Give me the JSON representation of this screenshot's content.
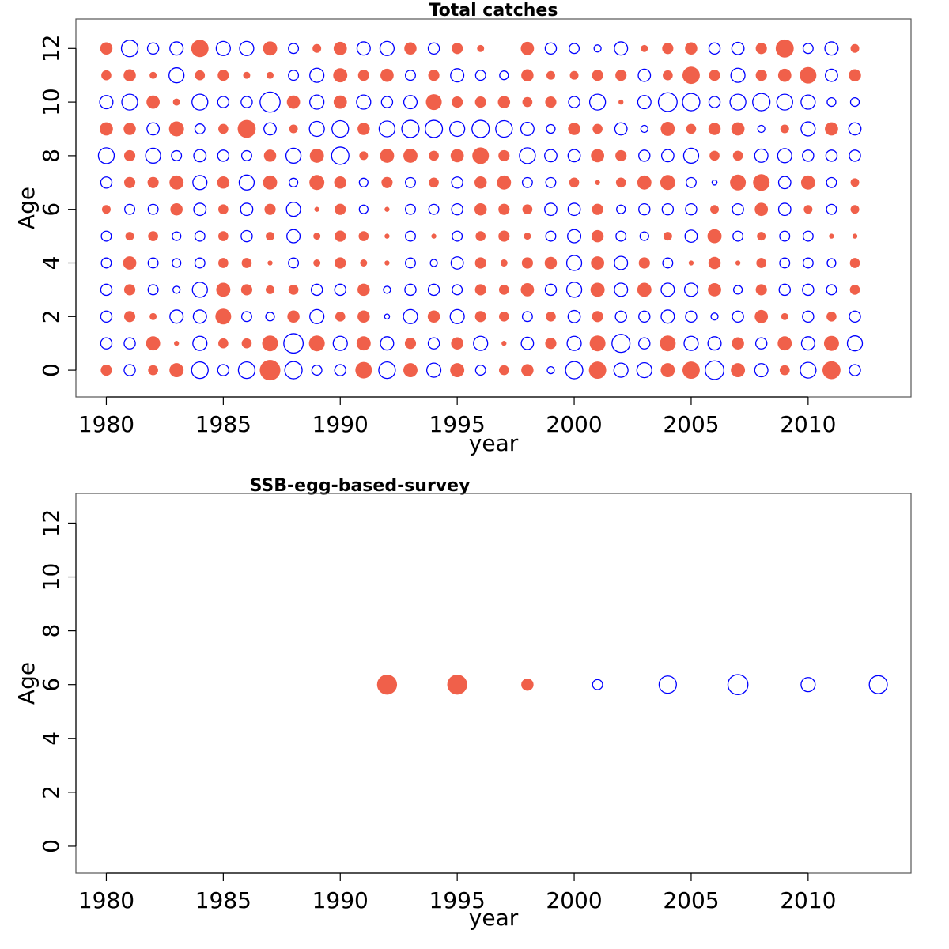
{
  "colors": {
    "positive": "#f0604a",
    "negative": "#0000ff"
  },
  "chart_data": [
    {
      "type": "scatter",
      "title": "Total catches",
      "xlabel": "year",
      "ylabel": "Age",
      "xlim": [
        1978.7,
        2014.4
      ],
      "ylim": [
        -1,
        13.1
      ],
      "xticks": [
        "1980",
        "1985",
        "1990",
        "1995",
        "2000",
        "2005",
        "2010"
      ],
      "yticks": [
        "0",
        "2",
        "4",
        "6",
        "8",
        "10",
        "12"
      ],
      "grid": false,
      "years": [
        1980,
        1981,
        1982,
        1983,
        1984,
        1985,
        1986,
        1987,
        1988,
        1989,
        1990,
        1991,
        1992,
        1993,
        1994,
        1995,
        1996,
        1997,
        1998,
        1999,
        2000,
        2001,
        2002,
        2003,
        2004,
        2005,
        2006,
        2007,
        2008,
        2009,
        2010,
        2011,
        2012
      ],
      "ages": [
        0,
        1,
        2,
        3,
        4,
        5,
        6,
        7,
        8,
        9,
        10,
        11,
        12
      ],
      "residuals": [
        [
          0.5,
          -0.5,
          0.4,
          0.8,
          -1.1,
          -0.5,
          -1.1,
          1.7,
          -1.2,
          -0.4,
          -0.5,
          1.1,
          -1.1,
          0.8,
          -0.8,
          0.8,
          -0.4,
          0.4,
          0.6,
          -0.2,
          -1.2,
          1.2,
          -0.8,
          -0.9,
          0.8,
          1.2,
          -1.4,
          0.8,
          -0.7,
          0.4,
          -1.0,
          1.3,
          -0.5
        ],
        [
          -0.5,
          -0.5,
          0.8,
          0.1,
          -0.8,
          0.4,
          0.4,
          1.0,
          -1.5,
          1.0,
          -0.8,
          0.8,
          -0.7,
          0.5,
          -0.5,
          0.6,
          -0.8,
          0.1,
          -0.6,
          0.5,
          -0.8,
          1.0,
          -1.3,
          -0.5,
          1.0,
          -0.8,
          -0.7,
          0.6,
          -0.5,
          0.8,
          -0.7,
          0.9,
          -0.9
        ],
        [
          -0.5,
          0.5,
          0.2,
          -0.7,
          -0.7,
          1.0,
          -0.4,
          -0.3,
          0.6,
          -0.8,
          0.4,
          0.6,
          -0.1,
          -0.8,
          0.6,
          -0.8,
          0.5,
          0.4,
          -0.4,
          0.4,
          -0.6,
          0.5,
          -0.5,
          -0.5,
          -0.7,
          -0.5,
          -0.2,
          -0.5,
          0.7,
          0.2,
          -0.5,
          0.4,
          -0.5
        ],
        [
          -0.5,
          0.5,
          -0.4,
          -0.2,
          -0.9,
          0.8,
          0.5,
          0.3,
          0.4,
          -0.5,
          -0.5,
          0.6,
          -0.2,
          -0.5,
          -0.5,
          -0.4,
          0.5,
          0.4,
          0.7,
          -0.5,
          -0.9,
          0.8,
          -0.7,
          0.8,
          -0.7,
          -0.7,
          0.7,
          -0.3,
          0.5,
          -0.5,
          -0.5,
          -0.4,
          0.4
        ],
        [
          -0.4,
          0.7,
          -0.4,
          -0.3,
          -0.4,
          0.4,
          0.4,
          0.1,
          -0.4,
          0.2,
          0.5,
          0.2,
          0.1,
          -0.4,
          -0.2,
          -0.6,
          0.5,
          0.2,
          0.5,
          0.6,
          -0.9,
          0.7,
          -0.7,
          0.5,
          -0.4,
          0.1,
          0.6,
          0.1,
          0.4,
          -0.4,
          -0.4,
          -0.3,
          0.4
        ],
        [
          -0.4,
          0.3,
          0.4,
          -0.3,
          -0.4,
          0.4,
          -0.5,
          0.3,
          -0.7,
          0.2,
          0.5,
          0.4,
          0.1,
          -0.4,
          0.1,
          -0.4,
          0.4,
          0.5,
          0.2,
          -0.4,
          -0.7,
          0.6,
          -0.4,
          -0.3,
          0.3,
          -0.6,
          0.8,
          -0.4,
          0.3,
          -0.4,
          -0.4,
          0.1,
          0.1
        ],
        [
          0.3,
          -0.4,
          -0.4,
          0.6,
          -0.6,
          0.4,
          -0.6,
          0.5,
          -0.8,
          0.1,
          0.5,
          -0.3,
          0.1,
          -0.4,
          -0.4,
          -0.5,
          0.6,
          0.5,
          0.4,
          -0.6,
          -0.6,
          0.5,
          -0.3,
          -0.5,
          -0.5,
          -0.5,
          0.3,
          -0.5,
          0.7,
          -0.6,
          0.3,
          -0.4,
          0.3
        ],
        [
          -0.5,
          0.5,
          0.5,
          0.8,
          -0.8,
          0.6,
          -0.9,
          0.8,
          -0.3,
          0.9,
          0.6,
          -0.3,
          0.5,
          -0.4,
          0.4,
          -0.5,
          0.6,
          0.8,
          -0.4,
          -0.4,
          0.4,
          0.1,
          0.4,
          0.8,
          0.9,
          -0.4,
          -0.1,
          1.0,
          1.1,
          -0.6,
          0.8,
          -0.4,
          0.3
        ],
        [
          -1.0,
          0.5,
          -0.9,
          -0.4,
          -0.6,
          -0.5,
          -0.4,
          0.6,
          -0.9,
          0.8,
          -1.2,
          0.3,
          0.8,
          0.8,
          0.4,
          0.7,
          1.1,
          0.5,
          -1.0,
          -0.6,
          -0.6,
          0.7,
          0.5,
          -0.5,
          -0.6,
          -0.9,
          0.4,
          0.4,
          -0.7,
          -0.8,
          -0.5,
          -0.5,
          -0.5
        ],
        [
          0.7,
          0.6,
          -0.6,
          0.9,
          -0.4,
          0.4,
          1.3,
          -0.6,
          0.3,
          -0.9,
          -1.1,
          0.6,
          -1.0,
          -1.2,
          -1.2,
          -0.9,
          -1.2,
          -1.1,
          -0.7,
          -0.3,
          0.6,
          0.4,
          -0.6,
          -0.2,
          0.8,
          0.4,
          0.6,
          0.7,
          -0.2,
          0.3,
          -0.8,
          0.7,
          -0.6
        ],
        [
          -0.7,
          -1.0,
          0.7,
          0.2,
          -1.0,
          -0.5,
          -0.5,
          -1.6,
          0.7,
          -0.8,
          0.7,
          -0.8,
          -0.5,
          -0.7,
          1.0,
          0.5,
          0.5,
          0.6,
          0.4,
          0.5,
          -0.5,
          -1.0,
          0.1,
          -0.7,
          -1.4,
          -1.2,
          -0.5,
          -1.0,
          -1.2,
          -1.0,
          -0.8,
          -0.3,
          -0.3
        ],
        [
          0.4,
          0.6,
          0.2,
          -0.9,
          0.4,
          0.5,
          0.2,
          0.2,
          -0.4,
          -0.8,
          0.8,
          0.5,
          0.7,
          -0.4,
          0.5,
          -0.7,
          -0.4,
          -0.3,
          0.6,
          0.3,
          0.3,
          0.5,
          0.5,
          -0.6,
          0.4,
          1.2,
          0.5,
          -0.8,
          0.5,
          0.7,
          1.1,
          -0.6,
          0.6
        ],
        [
          0.6,
          -1.1,
          -0.5,
          -0.7,
          1.2,
          -0.8,
          -0.8,
          0.8,
          -0.4,
          0.3,
          0.7,
          -0.7,
          -0.8,
          0.6,
          -0.5,
          0.5,
          0.2,
          0.0,
          0.7,
          -0.5,
          -0.4,
          -0.2,
          -0.7,
          0.2,
          0.5,
          0.6,
          -0.5,
          -0.6,
          0.5,
          1.3,
          -0.4,
          -0.7,
          0.3
        ]
      ]
    },
    {
      "type": "scatter",
      "title": "SSB-egg-based-survey",
      "xlabel": "year",
      "ylabel": "Age",
      "xlim": [
        1978.7,
        2014.4
      ],
      "ylim": [
        -1,
        13.1
      ],
      "xticks": [
        "1980",
        "1985",
        "1990",
        "1995",
        "2000",
        "2005",
        "2010"
      ],
      "yticks": [
        "0",
        "2",
        "4",
        "6",
        "8",
        "10",
        "12"
      ],
      "grid": false,
      "points": [
        {
          "year": 1992,
          "age": 6,
          "residual": 1.6
        },
        {
          "year": 1995,
          "age": 6,
          "residual": 1.6
        },
        {
          "year": 1998,
          "age": 6,
          "residual": 0.6
        },
        {
          "year": 2001,
          "age": 6,
          "residual": -0.4
        },
        {
          "year": 2004,
          "age": 6,
          "residual": -1.2
        },
        {
          "year": 2007,
          "age": 6,
          "residual": -1.6
        },
        {
          "year": 2010,
          "age": 6,
          "residual": -0.8
        },
        {
          "year": 2013,
          "age": 6,
          "residual": -1.3
        }
      ]
    }
  ]
}
